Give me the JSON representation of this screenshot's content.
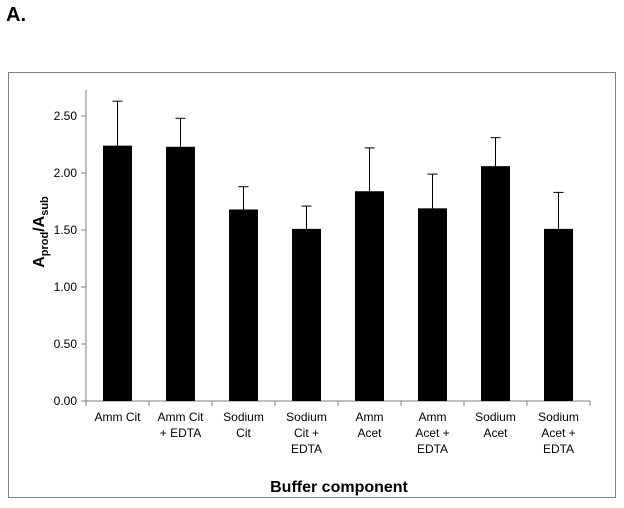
{
  "panel_label": "A.",
  "chart_data": {
    "type": "bar",
    "categories": [
      [
        "Amm Cit"
      ],
      [
        "Amm Cit",
        "+ EDTA"
      ],
      [
        "Sodium",
        "Cit"
      ],
      [
        "Sodium",
        "Cit +",
        "EDTA"
      ],
      [
        "Amm",
        "Acet"
      ],
      [
        "Amm",
        "Acet +",
        "EDTA"
      ],
      [
        "Sodium",
        "Acet"
      ],
      [
        "Sodium",
        "Acet +",
        "EDTA"
      ]
    ],
    "values": [
      2.24,
      2.23,
      1.68,
      1.51,
      1.84,
      1.69,
      2.06,
      1.51
    ],
    "errors": [
      0.39,
      0.25,
      0.2,
      0.2,
      0.38,
      0.3,
      0.25,
      0.32
    ],
    "xlabel": "Buffer component",
    "ylabel": {
      "main": "A",
      "sub1": "prod",
      "slash": "/A",
      "sub2": "sub"
    },
    "ylim": [
      0,
      2.5
    ],
    "yticks": [
      "0.00",
      "0.50",
      "1.00",
      "1.50",
      "2.00",
      "2.50"
    ],
    "ytick_values": [
      0,
      0.5,
      1.0,
      1.5,
      2.0,
      2.5
    ],
    "grid": false,
    "bar_color": "#000000"
  }
}
